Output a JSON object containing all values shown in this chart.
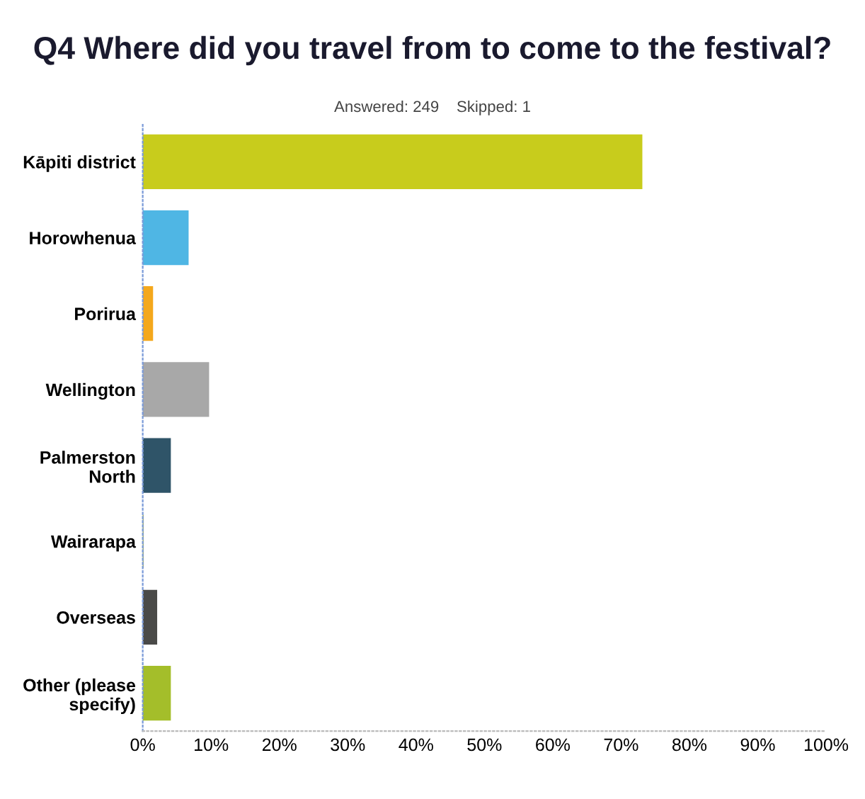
{
  "chart_data": {
    "type": "bar",
    "orientation": "horizontal",
    "title": "Q4 Where did you travel from to come to the festival?",
    "subtitle": "Answered: 249    Skipped: 1",
    "categories": [
      "Kāpiti district",
      "Horowhenua",
      "Porirua",
      "Wellington",
      "Palmerston North",
      "Wairarapa",
      "Overseas",
      "Other (please specify)"
    ],
    "values": [
      73,
      6.6,
      1.4,
      9.6,
      4,
      0,
      2,
      4
    ],
    "colors": [
      "#c8cc1c",
      "#4fb6e4",
      "#f4a81c",
      "#a8a8a8",
      "#2f5468",
      "#8a9a3a",
      "#4a4a48",
      "#a4be2a"
    ],
    "xlim": [
      0,
      100
    ],
    "xticks": [
      {
        "value": 0,
        "label": "0%"
      },
      {
        "value": 10,
        "label": "10%"
      },
      {
        "value": 20,
        "label": "20%"
      },
      {
        "value": 30,
        "label": "30%"
      },
      {
        "value": 40,
        "label": "40%"
      },
      {
        "value": 50,
        "label": "50%"
      },
      {
        "value": 60,
        "label": "60%"
      },
      {
        "value": 70,
        "label": "70%"
      },
      {
        "value": 80,
        "label": "80%"
      },
      {
        "value": 90,
        "label": "90%"
      },
      {
        "value": 100,
        "label": "100%"
      }
    ],
    "grid": false,
    "legend": false
  }
}
